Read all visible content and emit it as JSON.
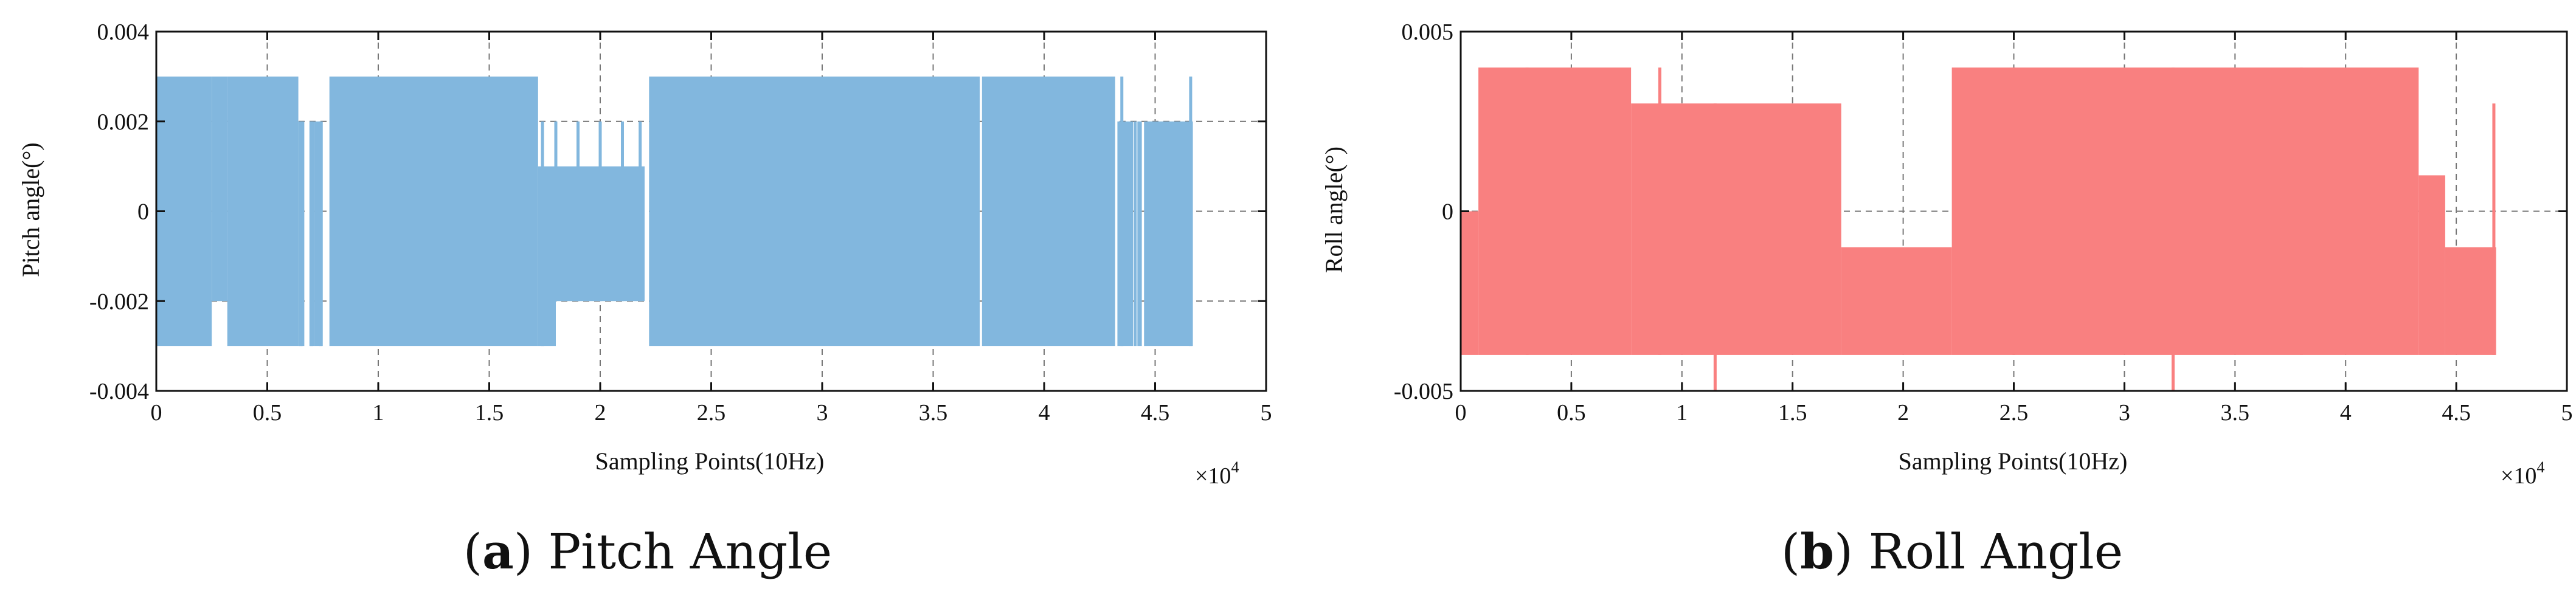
{
  "chart_data": [
    {
      "id": "a",
      "type": "line",
      "caption_letter": "a",
      "caption_text": "Pitch Angle",
      "xlabel": "Sampling Points(10Hz)",
      "ylabel": "Pitch angle(°)",
      "x_multiplier": "×10",
      "x_multiplier_exp": "4",
      "xlim": [
        0,
        50000
      ],
      "ylim": [
        -0.004,
        0.004
      ],
      "xticks": [
        0,
        5000,
        10000,
        15000,
        20000,
        25000,
        30000,
        35000,
        40000,
        45000,
        50000
      ],
      "xtick_labels": [
        "0",
        "0.5",
        "1",
        "1.5",
        "2",
        "2.5",
        "3",
        "3.5",
        "4",
        "4.5",
        "5"
      ],
      "yticks": [
        -0.004,
        -0.002,
        0,
        0.002,
        0.004
      ],
      "ytick_labels": [
        "-0.004",
        "-0.002",
        "0",
        "0.002",
        "0.004"
      ],
      "grid": "dashed",
      "color": "#82b7de",
      "series": [
        {
          "band_segments": [
            [
              0,
              2500,
              -0.003,
              0.003
            ],
            [
              2500,
              3200,
              -0.002,
              0.003
            ],
            [
              3200,
              6400,
              -0.003,
              0.003
            ],
            [
              6400,
              6600,
              -0.003,
              0.002
            ],
            [
              6900,
              7100,
              -0.003,
              0.002
            ],
            [
              7100,
              7500,
              -0.003,
              0.002
            ],
            [
              7800,
              17200,
              -0.003,
              0.003
            ],
            [
              17200,
              18000,
              -0.003,
              0.001
            ],
            [
              18000,
              20000,
              -0.002,
              0.001
            ],
            [
              20000,
              22000,
              -0.002,
              0.001
            ],
            [
              22200,
              37100,
              -0.003,
              0.003
            ],
            [
              37200,
              43200,
              -0.003,
              0.003
            ],
            [
              43300,
              44000,
              -0.003,
              0.002
            ],
            [
              44200,
              44400,
              -0.003,
              0.002
            ],
            [
              44500,
              46700,
              -0.003,
              0.002
            ]
          ],
          "spikes": [
            [
              6500,
              -0.003,
              0.002
            ],
            [
              6600,
              -0.003,
              0.002
            ],
            [
              7000,
              -0.003,
              0.002
            ],
            [
              7400,
              -0.003,
              0.002
            ],
            [
              17400,
              -0.003,
              0.002
            ],
            [
              18000,
              -0.002,
              0.002
            ],
            [
              19000,
              -0.002,
              0.002
            ],
            [
              20000,
              -0.002,
              0.002
            ],
            [
              21000,
              -0.002,
              0.002
            ],
            [
              21800,
              -0.002,
              0.002
            ],
            [
              43500,
              -0.003,
              0.003
            ],
            [
              44100,
              -0.003,
              0.002
            ],
            [
              46600,
              -0.003,
              0.003
            ]
          ]
        }
      ]
    },
    {
      "id": "b",
      "type": "line",
      "caption_letter": "b",
      "caption_text": "Roll Angle",
      "xlabel": "Sampling Points(10Hz)",
      "ylabel": "Roll angle(°)",
      "x_multiplier": "×10",
      "x_multiplier_exp": "4",
      "xlim": [
        0,
        50000
      ],
      "ylim": [
        -0.005,
        0.005
      ],
      "xticks": [
        0,
        5000,
        10000,
        15000,
        20000,
        25000,
        30000,
        35000,
        40000,
        45000,
        50000
      ],
      "xtick_labels": [
        "0",
        "0.5",
        "1",
        "1.5",
        "2",
        "2.5",
        "3",
        "3.5",
        "4",
        "4.5",
        "5"
      ],
      "yticks": [
        -0.005,
        0,
        0.005
      ],
      "ytick_labels": [
        "-0.005",
        "0",
        "0.005"
      ],
      "grid": "dashed",
      "color": "#f98080",
      "series": [
        {
          "band_segments": [
            [
              0,
              800,
              -0.004,
              0.0
            ],
            [
              800,
              7700,
              -0.004,
              0.004
            ],
            [
              7700,
              17200,
              -0.004,
              0.003
            ],
            [
              17200,
              22200,
              -0.004,
              -0.001
            ],
            [
              22200,
              43300,
              -0.004,
              0.004
            ],
            [
              43300,
              44500,
              -0.004,
              0.001
            ],
            [
              44500,
              46800,
              -0.004,
              -0.001
            ]
          ],
          "spikes": [
            [
              11500,
              -0.005,
              0.003
            ],
            [
              32200,
              -0.005,
              0.004
            ],
            [
              46700,
              -0.004,
              0.003
            ],
            [
              3000,
              -0.004,
              0.004
            ],
            [
              9000,
              -0.004,
              0.004
            ],
            [
              25000,
              -0.004,
              0.004
            ],
            [
              38000,
              -0.004,
              0.004
            ]
          ]
        }
      ]
    }
  ]
}
